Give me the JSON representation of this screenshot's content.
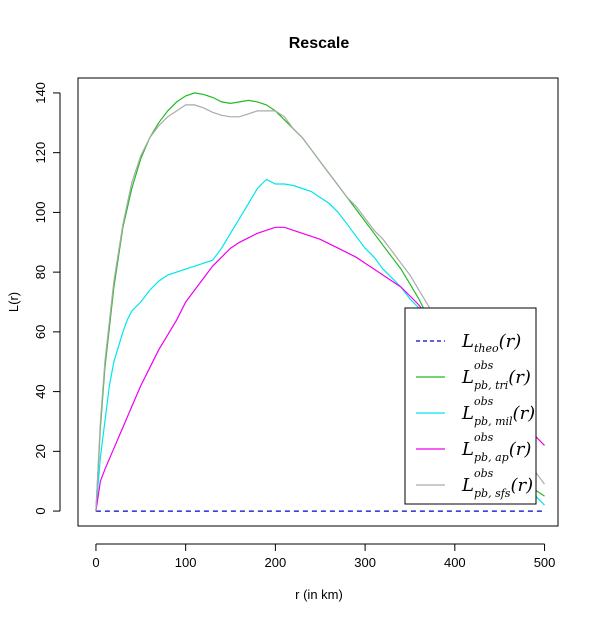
{
  "chart_data": {
    "type": "line",
    "title": "Rescale",
    "xlabel": "r (in km)",
    "ylabel": "L(r)",
    "xlim": [
      -20,
      515
    ],
    "ylim": [
      -5,
      145
    ],
    "xticks": [
      0,
      100,
      200,
      300,
      400,
      500
    ],
    "yticks": [
      0,
      20,
      40,
      60,
      80,
      100,
      120,
      140
    ],
    "grid": false,
    "legend_position": "bottom-right",
    "series": [
      {
        "label_main": "L",
        "label_sup": "",
        "label_sub": "theo",
        "label_arg": "(r)",
        "color": "#0000CD",
        "dash": true,
        "x": [
          0,
          500
        ],
        "y": [
          0,
          0
        ]
      },
      {
        "label_main": "L",
        "label_sup": "obs",
        "label_sub": "pb, tri",
        "label_arg": "(r)",
        "color": "#22BB22",
        "dash": false,
        "x": [
          0,
          5,
          10,
          20,
          30,
          40,
          50,
          60,
          70,
          80,
          90,
          100,
          110,
          120,
          130,
          140,
          150,
          160,
          170,
          180,
          190,
          200,
          210,
          220,
          230,
          240,
          250,
          260,
          270,
          280,
          290,
          300,
          310,
          320,
          330,
          340,
          350,
          360,
          370,
          380,
          390,
          400,
          410,
          420,
          430,
          440,
          450,
          460,
          470,
          480,
          490,
          500
        ],
        "y": [
          0,
          28,
          48,
          75,
          95,
          108,
          118,
          125,
          130,
          134,
          137,
          139,
          140,
          139.5,
          138.5,
          137,
          136.5,
          137,
          137.5,
          137,
          136,
          134,
          131,
          128,
          125,
          121,
          117,
          113,
          109,
          105,
          101,
          97,
          93,
          89,
          85,
          81,
          76,
          71,
          65,
          59,
          53,
          47,
          42,
          37,
          32,
          28,
          23,
          19,
          15,
          11,
          7,
          5
        ]
      },
      {
        "label_main": "L",
        "label_sup": "obs",
        "label_sub": "pb, mil",
        "label_arg": "(r)",
        "color": "#00E5EE",
        "dash": false,
        "x": [
          0,
          5,
          10,
          15,
          20,
          25,
          30,
          35,
          40,
          50,
          60,
          70,
          80,
          90,
          100,
          110,
          120,
          130,
          140,
          150,
          160,
          170,
          180,
          190,
          200,
          210,
          220,
          230,
          240,
          250,
          260,
          270,
          280,
          290,
          300,
          310,
          320,
          330,
          340,
          350,
          360,
          370,
          380,
          390,
          400,
          410,
          420,
          430,
          440,
          450,
          460,
          470,
          480,
          490,
          500
        ],
        "y": [
          0,
          18,
          30,
          42,
          50,
          55,
          60,
          64,
          67,
          70,
          74,
          77,
          79,
          80,
          81,
          82,
          83,
          84,
          88,
          93,
          98,
          103,
          108,
          111,
          109.5,
          109.5,
          109,
          108,
          107,
          105,
          103,
          100,
          96,
          92,
          88,
          85,
          81,
          78,
          75,
          71,
          68,
          64,
          59,
          54,
          49,
          44,
          40,
          35,
          30,
          25,
          19,
          14,
          9,
          5,
          2
        ]
      },
      {
        "label_main": "L",
        "label_sup": "obs",
        "label_sub": "pb, ap",
        "label_arg": "(r)",
        "color": "#EE00EE",
        "dash": false,
        "x": [
          0,
          5,
          10,
          20,
          30,
          40,
          50,
          60,
          70,
          80,
          90,
          100,
          110,
          120,
          130,
          140,
          150,
          160,
          170,
          180,
          190,
          200,
          210,
          220,
          230,
          240,
          250,
          260,
          270,
          280,
          290,
          300,
          310,
          320,
          330,
          340,
          350,
          360,
          370,
          380,
          390,
          400,
          410,
          420,
          430,
          440,
          450,
          460,
          470,
          480,
          490,
          500
        ],
        "y": [
          0,
          10,
          14,
          21,
          28,
          35,
          42,
          48,
          54,
          59,
          64,
          70,
          74,
          78,
          82,
          85,
          88,
          90,
          91.5,
          93,
          94,
          95,
          95,
          94,
          93,
          92,
          91,
          89.5,
          88,
          86.5,
          85,
          83,
          81,
          79,
          77,
          75,
          72,
          69,
          65,
          61,
          58,
          54,
          51,
          48,
          45,
          42,
          38,
          35,
          32,
          28,
          25,
          22
        ]
      },
      {
        "label_main": "L",
        "label_sup": "obs",
        "label_sub": "pb, sfs",
        "label_arg": "(r)",
        "color": "#AAAAAA",
        "dash": false,
        "x": [
          0,
          5,
          10,
          20,
          30,
          40,
          50,
          60,
          70,
          80,
          90,
          100,
          110,
          120,
          130,
          140,
          150,
          160,
          170,
          180,
          190,
          200,
          210,
          220,
          230,
          240,
          250,
          260,
          270,
          280,
          290,
          300,
          310,
          320,
          330,
          340,
          350,
          360,
          370,
          380,
          390,
          400,
          410,
          420,
          430,
          440,
          450,
          460,
          470,
          480,
          490,
          500
        ],
        "y": [
          0,
          30,
          50,
          77,
          96,
          110,
          119,
          125,
          129,
          132,
          134,
          136,
          136,
          135,
          133.5,
          132.5,
          132,
          132,
          133,
          134,
          134,
          134,
          132,
          128,
          125,
          121,
          117,
          113,
          109,
          105,
          102,
          98,
          94,
          91,
          87,
          83,
          79,
          74,
          69,
          64,
          59,
          54,
          49,
          44,
          40,
          36,
          31,
          27,
          22,
          17,
          13,
          9
        ]
      }
    ]
  }
}
